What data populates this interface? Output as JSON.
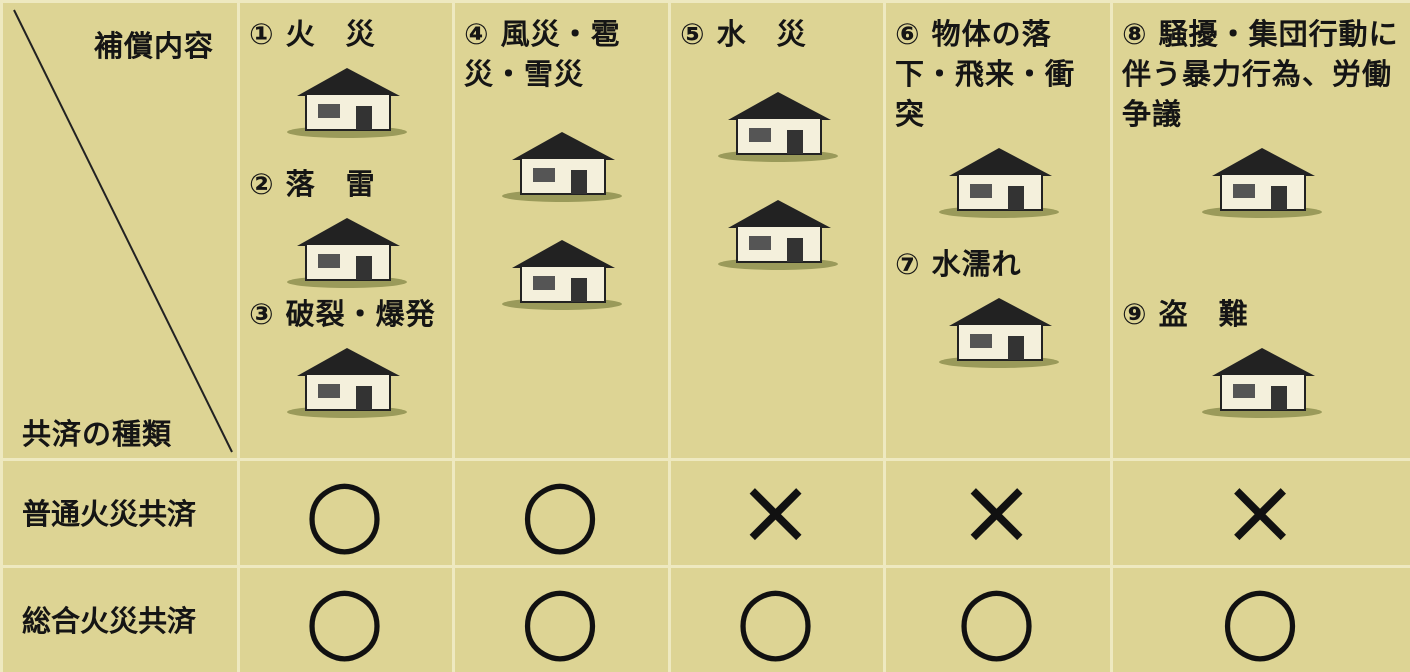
{
  "header": {
    "corner_top": "補償内容",
    "corner_bottom": "共済の種類"
  },
  "columns": [
    {
      "items": [
        "① 火　災",
        "② 落　雷",
        "③ 破裂・爆発"
      ]
    },
    {
      "items": [
        "④ 風災・雹災・雪災"
      ]
    },
    {
      "items": [
        "⑤ 水　災"
      ]
    },
    {
      "items": [
        "⑥ 物体の落下・飛来・衝突",
        "⑦ 水濡れ"
      ]
    },
    {
      "items": [
        "⑧ 騒擾・集団行動に伴う暴力行為、労働争議",
        "⑨ 盗　難"
      ]
    }
  ],
  "rows": [
    {
      "label": "普通火災共済",
      "marks": [
        "○",
        "○",
        "×",
        "×",
        "×"
      ]
    },
    {
      "label": "総合火災共済",
      "marks": [
        "○",
        "○",
        "○",
        "○",
        "○"
      ]
    }
  ]
}
